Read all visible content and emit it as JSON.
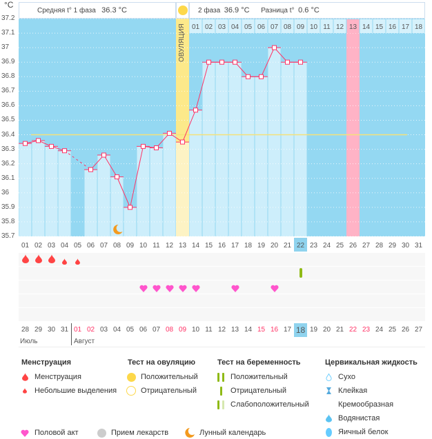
{
  "unit": "°C",
  "header": {
    "phase1_label": "Средняя t° 1 фаза",
    "phase1_value": "36.3 °C",
    "phase2_label": "2 фаза",
    "phase2_value": "36.9 °C",
    "diff_label": "Разница t°",
    "diff_value": "0.6 °C",
    "ovulation_label": "ОВУЛЯЦИЯ"
  },
  "chart_data": {
    "type": "bar",
    "ylim": [
      35.7,
      37.2
    ],
    "yticks": [
      "37.2",
      "37.1",
      "37",
      "36.9",
      "36.8",
      "36.7",
      "36.6",
      "36.5",
      "36.4",
      "36.3",
      "36.2",
      "36.1",
      "36",
      "35.9",
      "35.8",
      "35.7"
    ],
    "categories": [
      "01",
      "02",
      "03",
      "04",
      "05",
      "06",
      "07",
      "08",
      "09",
      "10",
      "11",
      "12",
      "13",
      "14",
      "15",
      "16",
      "17",
      "18",
      "19",
      "20",
      "21",
      "22",
      "23",
      "24",
      "25",
      "26",
      "27",
      "28",
      "29",
      "30",
      "31"
    ],
    "values": [
      36.34,
      36.36,
      36.32,
      36.29,
      null,
      36.16,
      36.26,
      36.11,
      35.9,
      36.32,
      36.31,
      36.41,
      36.35,
      36.57,
      36.9,
      36.9,
      36.9,
      36.8,
      36.8,
      37.0,
      36.9,
      36.9,
      null,
      null,
      null,
      null,
      null,
      null,
      null,
      null,
      null
    ],
    "coverline": 36.4,
    "ovulation_day": "13",
    "current_day": "22",
    "expected_period_day": "26",
    "luteal_day_labels": [
      "01",
      "02",
      "03",
      "04",
      "05",
      "06",
      "07",
      "08",
      "09",
      "10",
      "11",
      "12",
      "13",
      "14",
      "15",
      "16",
      "17",
      "18"
    ],
    "moon_day": "08",
    "colors": {
      "line": "#ff3366",
      "bg": "#94d8f2",
      "bar": "#cdeefb",
      "ovulation": "#fce98a",
      "period": "#ffb3c6",
      "coverline": "#f5e27a"
    }
  },
  "events": {
    "menstruation": {
      "01": "heavy",
      "02": "heavy",
      "03": "heavy",
      "04": "light",
      "05": "light"
    },
    "pregnancy_test": {
      "22": "negative"
    },
    "intercourse": [
      "10",
      "11",
      "12",
      "13",
      "14",
      "17",
      "20"
    ]
  },
  "calendar": {
    "dates": [
      "28",
      "29",
      "30",
      "31",
      "01",
      "02",
      "03",
      "04",
      "05",
      "06",
      "07",
      "08",
      "09",
      "10",
      "11",
      "12",
      "13",
      "14",
      "15",
      "16",
      "17",
      "18",
      "19",
      "20",
      "21",
      "22",
      "23",
      "24",
      "25",
      "26",
      "27"
    ],
    "weekend": [
      "01",
      "02",
      "08",
      "09",
      "15",
      "16",
      "22",
      "23"
    ],
    "months": [
      "Июль",
      "Август"
    ],
    "today": "18"
  },
  "legend": {
    "menstruation": {
      "title": "Менструация",
      "items": [
        "Менструация",
        "Небольшие выделения"
      ]
    },
    "ovulation_test": {
      "title": "Тест на овуляцию",
      "items": [
        "Положительный",
        "Отрицательный"
      ]
    },
    "pregnancy_test": {
      "title": "Тест на беременность",
      "items": [
        "Положительный",
        "Отрицательный",
        "Слабоположительный"
      ]
    },
    "cervical": {
      "title": "Цервикальная жидкость",
      "items": [
        "Сухо",
        "Клейкая",
        "Кремообразная",
        "Водянистая",
        "Яичный белок"
      ]
    },
    "other": [
      "Половой акт",
      "Прием лекарств",
      "Лунный календарь"
    ]
  }
}
